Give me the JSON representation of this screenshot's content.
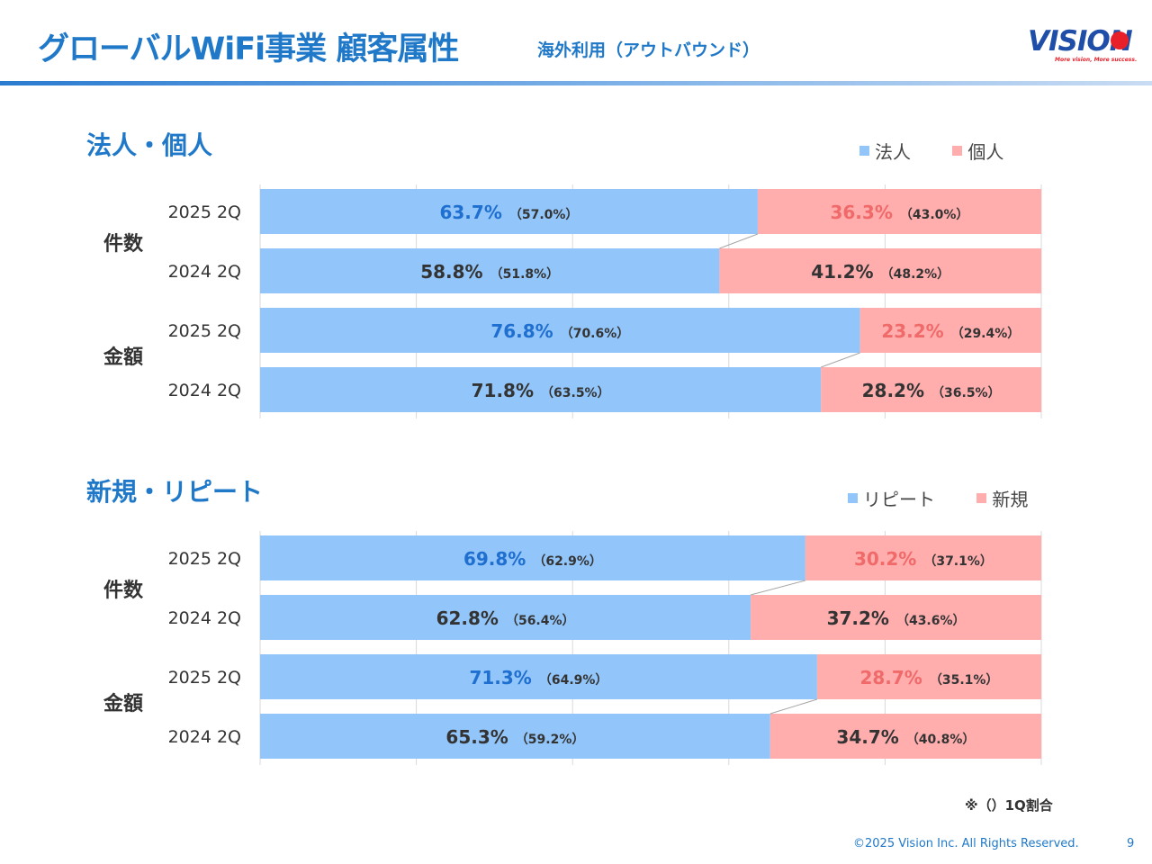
{
  "header": {
    "title": "グローバルWiFi事業 顧客属性",
    "subtitle": "海外利用（アウトバウンド）",
    "logo_text": "VISION",
    "logo_tagline": "More vision, More success."
  },
  "colors": {
    "accent": "#1f78c8",
    "blue_bar": "#92c5f9",
    "pink_bar": "#ffadad",
    "highlight_blue": "#1f6fd0",
    "highlight_pink": "#f06a6a"
  },
  "chart_data": [
    {
      "type": "bar",
      "orientation": "horizontal",
      "stacked": "100%",
      "title": "法人・個人",
      "legend": [
        "法人",
        "個人"
      ],
      "groups": [
        "件数",
        "金額"
      ],
      "categories": [
        "2025 2Q",
        "2024 2Q",
        "2025 2Q",
        "2024 2Q"
      ],
      "series": [
        {
          "name": "法人",
          "values": [
            63.7,
            58.8,
            76.8,
            71.8
          ],
          "q1_values": [
            57.0,
            51.8,
            70.6,
            63.5
          ]
        },
        {
          "name": "個人",
          "values": [
            36.3,
            41.2,
            23.2,
            28.2
          ],
          "q1_values": [
            43.0,
            48.2,
            29.4,
            36.5
          ]
        }
      ],
      "xlim": [
        0,
        100
      ],
      "legend_position": "top-right"
    },
    {
      "type": "bar",
      "orientation": "horizontal",
      "stacked": "100%",
      "title": "新規・リピート",
      "legend": [
        "リピート",
        "新規"
      ],
      "groups": [
        "件数",
        "金額"
      ],
      "categories": [
        "2025 2Q",
        "2024 2Q",
        "2025 2Q",
        "2024 2Q"
      ],
      "series": [
        {
          "name": "リピート",
          "values": [
            69.8,
            62.8,
            71.3,
            65.3
          ],
          "q1_values": [
            62.9,
            56.4,
            64.9,
            59.2
          ]
        },
        {
          "name": "新規",
          "values": [
            30.2,
            37.2,
            28.7,
            34.7
          ],
          "q1_values": [
            37.1,
            43.6,
            35.1,
            40.8
          ]
        }
      ],
      "xlim": [
        0,
        100
      ],
      "legend_position": "top-right"
    }
  ],
  "footnote": "※（）1Q割合",
  "copyright": "©2025 Vision Inc. All Rights Reserved.",
  "page_number": "9"
}
